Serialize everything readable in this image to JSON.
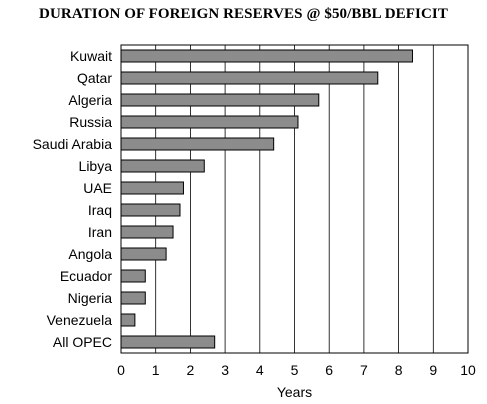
{
  "chart_data": {
    "type": "bar",
    "orientation": "horizontal",
    "title": "DURATION OF FOREIGN RESERVES @ $50/BBL DEFICIT",
    "xlabel": "Years",
    "ylabel": "",
    "xlim": [
      0,
      10
    ],
    "xticks": [
      "0",
      "1",
      "2",
      "3",
      "4",
      "5",
      "6",
      "7",
      "8",
      "9",
      "10"
    ],
    "grid": "vertical",
    "bar_color": "#8c8c8c",
    "categories": [
      "Kuwait",
      "Qatar",
      "Algeria",
      "Russia",
      "Saudi Arabia",
      "Libya",
      "UAE",
      "Iraq",
      "Iran",
      "Angola",
      "Ecuador",
      "Nigeria",
      "Venezuela",
      "All OPEC"
    ],
    "values": [
      8.4,
      7.4,
      5.7,
      5.1,
      4.4,
      2.4,
      1.8,
      1.7,
      1.5,
      1.3,
      0.7,
      0.7,
      0.4,
      2.7
    ]
  }
}
